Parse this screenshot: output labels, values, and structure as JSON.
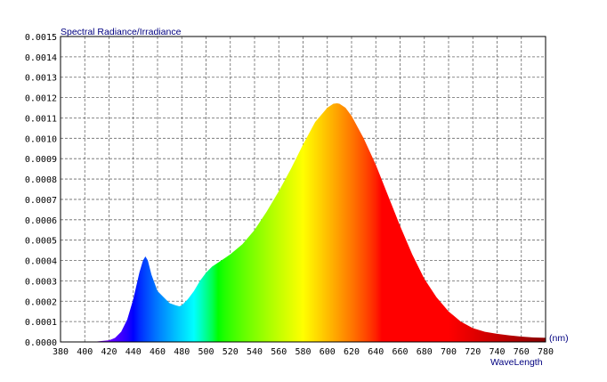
{
  "chart_data": {
    "type": "area",
    "title": "Spectral Radiance/Irradiance",
    "xlabel": "WaveLength",
    "x_unit": "(nm)",
    "xlim": [
      380,
      780
    ],
    "ylim": [
      0,
      0.0015
    ],
    "x_ticks": [
      "380",
      "400",
      "420",
      "440",
      "460",
      "480",
      "500",
      "520",
      "540",
      "560",
      "580",
      "600",
      "620",
      "640",
      "660",
      "680",
      "700",
      "720",
      "740",
      "760",
      "780"
    ],
    "y_ticks": [
      "0.0000",
      "0.0001",
      "0.0002",
      "0.0003",
      "0.0004",
      "0.0005",
      "0.0006",
      "0.0007",
      "0.0008",
      "0.0009",
      "0.0010",
      "0.0011",
      "0.0012",
      "0.0013",
      "0.0014",
      "0.0015"
    ],
    "grid": true,
    "fill": "spectral-rainbow",
    "x": [
      380,
      400,
      410,
      420,
      425,
      430,
      435,
      440,
      445,
      448,
      450,
      452,
      455,
      460,
      465,
      470,
      475,
      478,
      480,
      485,
      490,
      495,
      500,
      505,
      510,
      520,
      530,
      540,
      550,
      560,
      570,
      580,
      590,
      600,
      605,
      608,
      610,
      615,
      620,
      630,
      640,
      650,
      660,
      670,
      680,
      690,
      700,
      710,
      720,
      730,
      740,
      750,
      760,
      770,
      780
    ],
    "values": [
      0.0,
      0.0,
      2e-06,
      8e-06,
      2e-05,
      5e-05,
      0.00011,
      0.00021,
      0.00034,
      0.0004,
      0.00042,
      0.0004,
      0.00033,
      0.00025,
      0.00022,
      0.00019,
      0.00018,
      0.000175,
      0.00018,
      0.00021,
      0.00025,
      0.0003,
      0.00034,
      0.00037,
      0.00039,
      0.00043,
      0.00048,
      0.00055,
      0.00064,
      0.00074,
      0.00085,
      0.00097,
      0.00108,
      0.00115,
      0.00117,
      0.001172,
      0.00117,
      0.00115,
      0.00111,
      0.001,
      0.00087,
      0.00072,
      0.00057,
      0.00043,
      0.00031,
      0.00022,
      0.00015,
      0.0001,
      6.8e-05,
      5e-05,
      4e-05,
      3.2e-05,
      2.6e-05,
      2.2e-05,
      2e-05
    ]
  }
}
